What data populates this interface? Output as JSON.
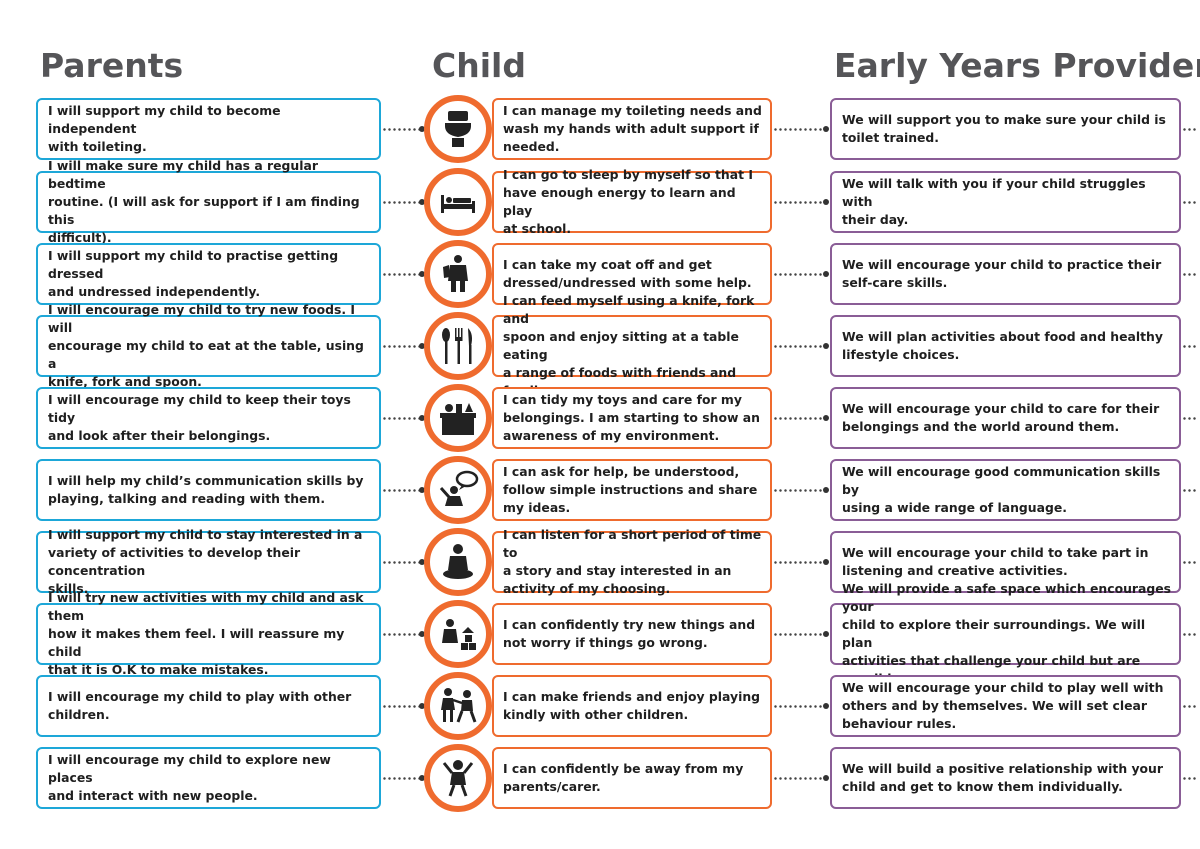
{
  "headings": {
    "parents": "Parents",
    "child": "Child",
    "provider": "Early Years Provider"
  },
  "colors": {
    "parents_border": "#1da7d8",
    "child_border": "#ef6b2e",
    "provider_border": "#8a5d96",
    "heading_text": "#555558"
  },
  "rows": [
    {
      "parent": "I will support my child to become independent\nwith toileting.",
      "child": "I can manage my toileting needs and\nwash my hands with adult support if\nneeded.",
      "provider": "We will support you to make sure your child is\ntoilet trained.",
      "icon": "toilet-icon"
    },
    {
      "parent": "I will make sure my child has a regular bedtime\nroutine.  (I will ask for support if I am finding this\ndifficult).",
      "child": "I can go to sleep by myself so that I\nhave enough energy to learn and play\nat school.",
      "provider": "We will talk with you if your child struggles with\ntheir day.",
      "icon": "bed-icon"
    },
    {
      "parent": "I will support my child to practise getting dressed\nand undressed independently.",
      "child": "I can take my coat off and get\ndressed/undressed with some help.",
      "provider": "We will encourage your child to practice their\nself-care skills.",
      "icon": "dressing-icon"
    },
    {
      "parent": "I will encourage my child to try new foods. I will\nencourage my child to eat at the table, using a\nknife, fork and spoon.",
      "child": "I can feed myself using a knife, fork and\nspoon and enjoy sitting at a table eating\na range of foods with friends and family.",
      "provider": "We will plan activities about food and healthy\nlifestyle choices.",
      "icon": "cutlery-icon"
    },
    {
      "parent": "I will encourage my child to keep their toys tidy\nand look after their belongings.",
      "child": "I can tidy my toys and care for my\nbelongings. I am starting to show an\nawareness of my environment.",
      "provider": "We will encourage your child to care for their\nbelongings and the world around them.",
      "icon": "toy-box-icon"
    },
    {
      "parent": "I will help my child’s communication skills by\nplaying, talking and reading with them.",
      "child": "I can ask for help, be understood,\nfollow simple instructions and share\nmy ideas.",
      "provider": "We will encourage good communication skills by\nusing a wide range of language.",
      "icon": "speech-bubble-icon"
    },
    {
      "parent": "I will support my child to stay interested in a\nvariety of activities to develop their concentration\nskills.",
      "child": "I can listen for a short period of time to\na story and stay interested in an\nactivity of my choosing.",
      "provider": "We will encourage your child to take part in\nlistening and creative activities.",
      "icon": "sitting-child-icon"
    },
    {
      "parent": "I will try new activities with my child and ask them\nhow it makes them feel. I will reassure my child\nthat it is O.K to make mistakes.",
      "child": "I can confidently try new things and\nnot worry if things go wrong.",
      "provider": "We will provide a safe space which encourages your\nchild to explore their surroundings. We will plan\nactivities that challenge your child but are possible.",
      "icon": "building-blocks-icon"
    },
    {
      "parent": "I will encourage my child to play with other\nchildren.",
      "child": "I can make friends and enjoy playing\nkindly with other children.",
      "provider": "We will encourage your child to play well with\nothers and by themselves. We will set clear\nbehaviour rules.",
      "icon": "children-playing-icon"
    },
    {
      "parent": "I will encourage my child to explore new places\nand interact with new people.",
      "child": "I can confidently be away from my\nparents/carer.",
      "provider": "We will build a positive relationship with your\nchild and get to know them individually.",
      "icon": "happy-child-icon"
    }
  ]
}
